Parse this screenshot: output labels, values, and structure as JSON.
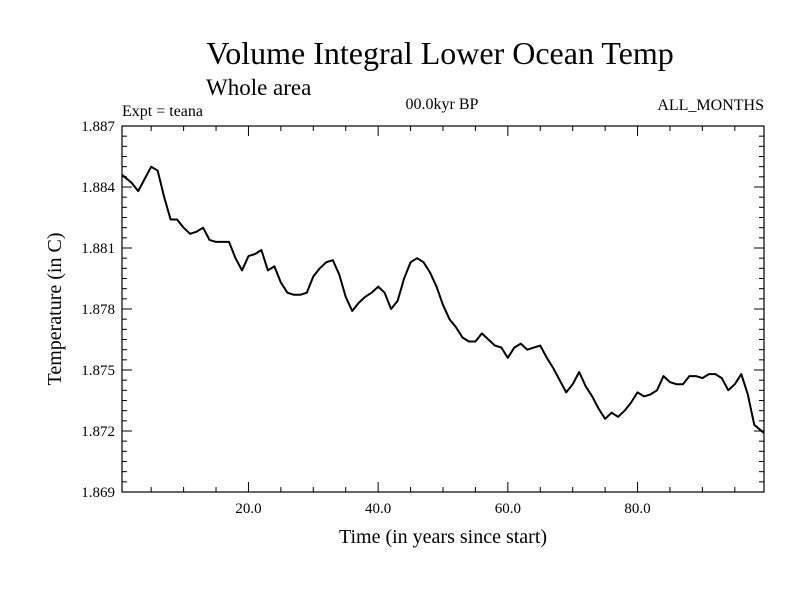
{
  "chart_data": {
    "type": "line",
    "title": "Volume Integral Lower Ocean Temp",
    "subtitle": "Whole area",
    "experiment_label": "Expt = teana",
    "period_label": "00.0kyr BP",
    "months_label": "ALL_MONTHS",
    "xlabel": "Time (in years since start)",
    "ylabel": "Temperature (in C)",
    "xlim": [
      0.5,
      99.5
    ],
    "ylim": [
      1.869,
      1.887
    ],
    "x_ticks": [
      20,
      40,
      60,
      80
    ],
    "x_tick_labels": [
      "20.0",
      "40.0",
      "60.0",
      "80.0"
    ],
    "y_ticks": [
      1.869,
      1.872,
      1.875,
      1.878,
      1.881,
      1.884,
      1.887
    ],
    "y_tick_labels": [
      "1.869",
      "1.872",
      "1.875",
      "1.878",
      "1.881",
      "1.884",
      "1.887"
    ],
    "series": [
      {
        "name": "teana",
        "color": "#000000",
        "x": [
          0.5,
          2,
          3,
          4,
          5,
          6,
          7,
          8,
          9,
          10,
          11,
          12,
          13,
          14,
          15,
          16,
          17,
          18,
          19,
          20,
          21,
          22,
          23,
          24,
          25,
          26,
          27,
          28,
          29,
          30,
          31,
          32,
          33,
          34,
          35,
          36,
          37,
          38,
          39,
          40,
          41,
          42,
          43,
          44,
          45,
          46,
          47,
          48,
          49,
          50,
          51,
          52,
          53,
          54,
          55,
          56,
          57,
          58,
          59,
          60,
          61,
          62,
          63,
          64,
          65,
          66,
          67,
          68,
          69,
          70,
          71,
          72,
          73,
          74,
          75,
          76,
          77,
          78,
          79,
          80,
          81,
          82,
          83,
          84,
          85,
          86,
          87,
          88,
          89,
          90,
          91,
          92,
          93,
          94,
          95,
          96,
          97,
          98,
          99.5
        ],
        "y": [
          1.8846,
          1.8842,
          1.8838,
          1.8844,
          1.885,
          1.8848,
          1.8835,
          1.8824,
          1.8824,
          1.882,
          1.8817,
          1.8818,
          1.882,
          1.8814,
          1.8813,
          1.8813,
          1.8813,
          1.8805,
          1.8799,
          1.8806,
          1.8807,
          1.8809,
          1.8799,
          1.8801,
          1.8793,
          1.8788,
          1.8787,
          1.8787,
          1.8788,
          1.8796,
          1.88,
          1.8803,
          1.8804,
          1.8797,
          1.8786,
          1.8779,
          1.8783,
          1.8786,
          1.8788,
          1.8791,
          1.8788,
          1.878,
          1.8784,
          1.8795,
          1.8803,
          1.8805,
          1.8803,
          1.8798,
          1.8791,
          1.8782,
          1.8775,
          1.8771,
          1.8766,
          1.8764,
          1.8764,
          1.8768,
          1.8765,
          1.8762,
          1.8761,
          1.8756,
          1.8761,
          1.8763,
          1.876,
          1.8761,
          1.8762,
          1.8756,
          1.8751,
          1.8745,
          1.8739,
          1.8743,
          1.8749,
          1.8742,
          1.8737,
          1.8731,
          1.8726,
          1.8729,
          1.8727,
          1.873,
          1.8734,
          1.8739,
          1.8737,
          1.8738,
          1.874,
          1.8747,
          1.8744,
          1.8743,
          1.8743,
          1.8747,
          1.8747,
          1.8746,
          1.8748,
          1.8748,
          1.8746,
          1.874,
          1.8743,
          1.8748,
          1.8738,
          1.8723,
          1.8719
        ]
      }
    ]
  }
}
